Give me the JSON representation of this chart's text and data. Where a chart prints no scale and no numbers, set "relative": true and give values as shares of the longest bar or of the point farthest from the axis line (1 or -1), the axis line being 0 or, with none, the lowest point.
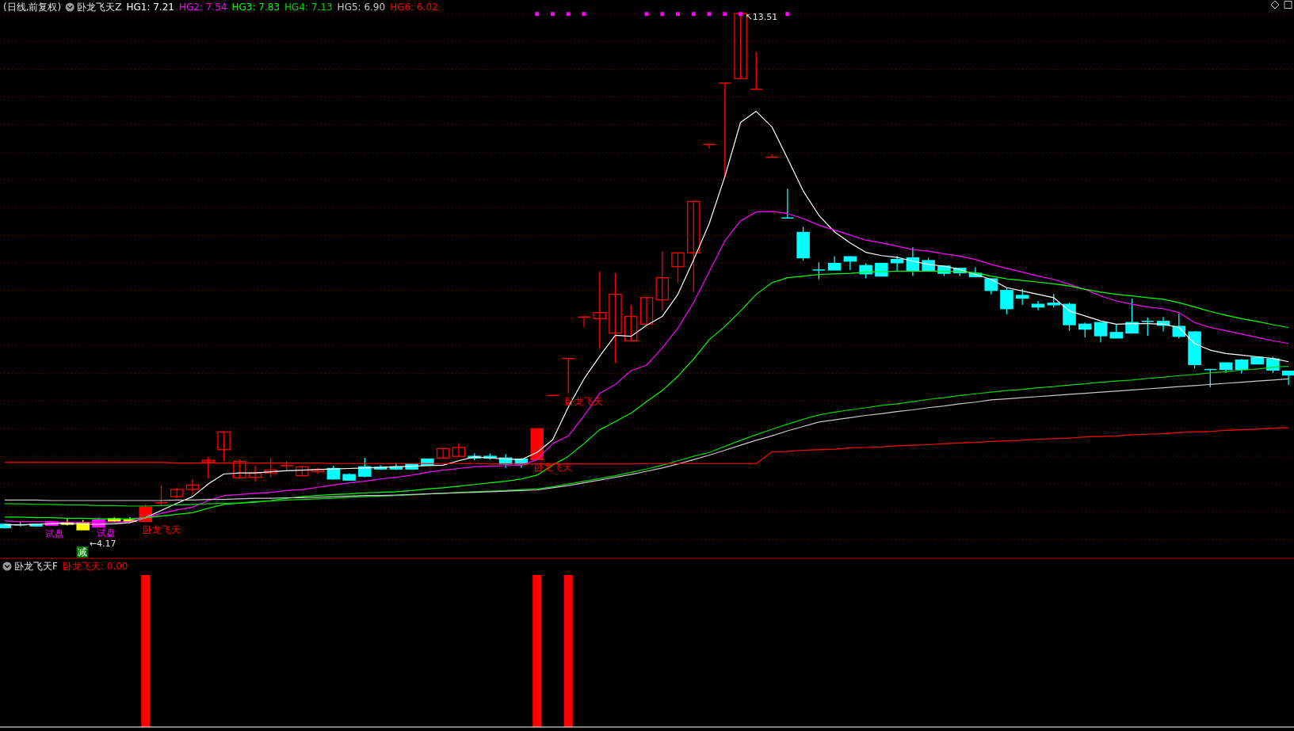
{
  "chart_data": [
    {
      "type": "candlestick",
      "title": "卧龙飞天Z",
      "subtitle": "(日线,前复权)",
      "categories": [
        null,
        null,
        null,
        null,
        null,
        null,
        null,
        null,
        null,
        null,
        null,
        null,
        null,
        null,
        null,
        null,
        null,
        null,
        null,
        null,
        null,
        null,
        null,
        null,
        null,
        null,
        null,
        null,
        null,
        null,
        null,
        null,
        null,
        null,
        null,
        null,
        null,
        null,
        null,
        null,
        null,
        null,
        null,
        null,
        null,
        null,
        null,
        null,
        null,
        null,
        null,
        null,
        null,
        null,
        null,
        null,
        null,
        null,
        null,
        null,
        null,
        null,
        null,
        null,
        null,
        null,
        null,
        null,
        null,
        null,
        null,
        null,
        null,
        null,
        null,
        null,
        null,
        null,
        null,
        null,
        null,
        null,
        null
      ],
      "ohlc": [
        [
          4.27,
          4.28,
          4.19,
          4.21
        ],
        [
          4.27,
          4.32,
          4.23,
          4.25
        ],
        [
          4.27,
          4.28,
          4.23,
          4.24
        ],
        [
          4.32,
          4.33,
          4.24,
          4.25
        ],
        [
          4.3,
          4.39,
          4.25,
          4.27
        ],
        [
          4.3,
          4.35,
          4.17,
          4.17
        ],
        [
          4.35,
          4.39,
          4.21,
          4.22
        ],
        [
          4.33,
          4.4,
          4.31,
          4.37
        ],
        [
          4.32,
          4.4,
          4.29,
          4.35
        ],
        [
          4.32,
          4.63,
          4.32,
          4.58
        ],
        [
          4.66,
          4.97,
          4.61,
          4.66
        ],
        [
          4.77,
          4.93,
          4.74,
          4.9
        ],
        [
          4.9,
          5.08,
          4.81,
          4.98
        ],
        [
          5.4,
          5.49,
          5.1,
          5.43
        ],
        [
          5.62,
          5.95,
          5.41,
          5.94
        ],
        [
          5.11,
          5.45,
          5.11,
          5.41
        ],
        [
          5.12,
          5.33,
          5.04,
          5.2
        ],
        [
          5.2,
          5.47,
          5.12,
          5.25
        ],
        [
          5.33,
          5.41,
          5.25,
          5.33
        ],
        [
          5.15,
          5.33,
          5.14,
          5.31
        ],
        [
          5.22,
          5.29,
          5.18,
          5.26
        ],
        [
          5.28,
          5.33,
          5.08,
          5.09
        ],
        [
          5.17,
          5.19,
          5.06,
          5.07
        ],
        [
          5.31,
          5.47,
          5.12,
          5.14
        ],
        [
          5.3,
          5.34,
          5.25,
          5.27
        ],
        [
          5.31,
          5.38,
          5.25,
          5.27
        ],
        [
          5.36,
          5.37,
          5.26,
          5.27
        ],
        [
          5.45,
          5.46,
          5.33,
          5.34
        ],
        [
          5.47,
          5.65,
          5.46,
          5.64
        ],
        [
          5.5,
          5.74,
          5.48,
          5.66
        ],
        [
          5.5,
          5.55,
          5.43,
          5.47
        ],
        [
          5.5,
          5.55,
          5.44,
          5.47
        ],
        [
          5.47,
          5.54,
          5.29,
          5.36
        ],
        [
          5.45,
          5.47,
          5.29,
          5.36
        ],
        [
          5.44,
          6.0,
          5.44,
          6.0
        ],
        [
          6.6,
          6.6,
          6.6,
          6.6
        ],
        [
          7.27,
          7.27,
          6.64,
          7.27
        ],
        [
          8.02,
          8.02,
          7.84,
          8.02
        ],
        [
          7.99,
          8.84,
          7.45,
          8.1
        ],
        [
          7.73,
          8.81,
          7.19,
          8.43
        ],
        [
          7.59,
          8.24,
          7.59,
          8.03
        ],
        [
          7.89,
          8.37,
          7.89,
          8.37
        ],
        [
          8.33,
          9.21,
          8.14,
          8.73
        ],
        [
          8.93,
          9.18,
          8.64,
          9.18
        ],
        [
          9.18,
          10.11,
          8.47,
          10.11
        ],
        [
          11.14,
          11.14,
          11.07,
          11.14
        ],
        [
          12.25,
          12.25,
          10.55,
          12.25
        ],
        [
          12.33,
          13.51,
          12.33,
          13.51
        ],
        [
          12.14,
          12.81,
          12.14,
          12.14
        ],
        [
          10.91,
          10.96,
          10.91,
          10.91
        ],
        [
          9.81,
          10.34,
          9.81,
          9.81
        ],
        [
          9.55,
          9.65,
          9.04,
          9.09
        ],
        [
          8.87,
          9.01,
          8.7,
          8.87
        ],
        [
          8.99,
          9.12,
          8.87,
          8.87
        ],
        [
          9.11,
          9.12,
          8.87,
          9.03
        ],
        [
          8.95,
          8.99,
          8.72,
          8.8
        ],
        [
          8.99,
          8.99,
          8.76,
          8.76
        ],
        [
          9.06,
          9.12,
          8.85,
          9.0
        ],
        [
          9.09,
          9.28,
          8.76,
          8.86
        ],
        [
          9.04,
          9.09,
          8.85,
          8.85
        ],
        [
          8.94,
          8.94,
          8.76,
          8.81
        ],
        [
          8.9,
          8.9,
          8.76,
          8.82
        ],
        [
          8.81,
          8.92,
          8.75,
          8.75
        ],
        [
          8.71,
          8.71,
          8.43,
          8.5
        ],
        [
          8.5,
          8.54,
          8.07,
          8.17
        ],
        [
          8.41,
          8.53,
          8.24,
          8.36
        ],
        [
          8.25,
          8.31,
          8.14,
          8.2
        ],
        [
          8.27,
          8.44,
          8.19,
          8.24
        ],
        [
          8.25,
          8.28,
          7.77,
          7.88
        ],
        [
          7.89,
          7.92,
          7.65,
          7.8
        ],
        [
          7.92,
          7.92,
          7.56,
          7.68
        ],
        [
          7.74,
          7.89,
          7.64,
          7.64
        ],
        [
          7.92,
          8.35,
          7.73,
          7.73
        ],
        [
          7.95,
          8.01,
          7.68,
          7.93
        ],
        [
          7.94,
          8.02,
          7.76,
          7.87
        ],
        [
          7.85,
          8.08,
          7.63,
          7.67
        ],
        [
          7.75,
          7.76,
          7.09,
          7.16
        ],
        [
          7.08,
          7.08,
          6.75,
          7.06
        ],
        [
          7.19,
          7.19,
          7.01,
          7.07
        ],
        [
          7.24,
          7.26,
          7.0,
          7.07
        ],
        [
          7.29,
          7.29,
          7.17,
          7.17
        ],
        [
          7.26,
          7.3,
          7.01,
          7.06
        ],
        [
          7.04,
          7.04,
          6.79,
          6.97
        ]
      ],
      "colors": [
        "#00ffff",
        "#00ffff",
        "#00ffff",
        "#ff00ff",
        "#ffff00",
        "#ffff00",
        "#ff00ff",
        "#ffff00",
        "#ffff00",
        "#ff0000",
        "#ff0000",
        "#ff0000",
        "#ff0000",
        "#ff0000",
        "#ff0000",
        "#ff0000",
        "#ff0000",
        "#ff0000",
        "#ff0000",
        "#ff0000",
        "#ff0000",
        "#00ffff",
        "#00ffff",
        "#00ffff",
        "#00ffff",
        "#00ffff",
        "#00ffff",
        "#00ffff",
        "#ff0000",
        "#ff0000",
        "#00ffff",
        "#00ffff",
        "#00ffff",
        "#00ffff",
        "#ff0000",
        "#ff0000",
        "#ff0000",
        "#ff0000",
        "#ff0000",
        "#ff0000",
        "#ff0000",
        "#ff0000",
        "#ff0000",
        "#ff0000",
        "#ff0000",
        "#ff0000",
        "#ff0000",
        "#ff0000",
        "#ff0000",
        "#ff0000",
        "#00ffff",
        "#00ffff",
        "#00ffff",
        "#00ffff",
        "#00ffff",
        "#00ffff",
        "#00ffff",
        "#00ffff",
        "#00ffff",
        "#00ffff",
        "#00ffff",
        "#00ffff",
        "#00ffff",
        "#00ffff",
        "#00ffff",
        "#00ffff",
        "#00ffff",
        "#00ffff",
        "#00ffff",
        "#00ffff",
        "#00ffff",
        "#00ffff",
        "#00ffff",
        "#00ffff",
        "#00ffff",
        "#00ffff",
        "#00ffff",
        "#00ffff",
        "#00ffff",
        "#00ffff",
        "#00ffff",
        "#00ffff",
        "#00ffff"
      ],
      "series": [
        {
          "name": "HG1: 7.21",
          "type": "line",
          "color": "#ffffff",
          "values": [
            4.26,
            4.26,
            4.27,
            4.28,
            4.29,
            4.27,
            4.27,
            4.28,
            4.3,
            4.39,
            4.52,
            4.65,
            4.77,
            5.0,
            5.18,
            5.2,
            5.2,
            5.22,
            5.24,
            5.25,
            5.26,
            5.27,
            5.28,
            5.29,
            5.3,
            5.31,
            5.32,
            5.33,
            5.34,
            5.42,
            5.49,
            5.47,
            5.45,
            5.44,
            5.57,
            5.8,
            6.39,
            6.9,
            7.31,
            7.69,
            7.67,
            7.87,
            8.03,
            8.43,
            9.05,
            9.71,
            10.56,
            11.54,
            11.74,
            11.46,
            10.89,
            10.3,
            9.86,
            9.56,
            9.36,
            9.19,
            9.13,
            9.1,
            9.03,
            8.97,
            8.94,
            8.88,
            8.79,
            8.7,
            8.55,
            8.49,
            8.43,
            8.37,
            8.13,
            8.04,
            7.95,
            7.89,
            7.9,
            7.9,
            7.89,
            7.83,
            7.54,
            7.42,
            7.36,
            7.33,
            7.3,
            7.27,
            7.21
          ]
        },
        {
          "name": "HG2: 7.54",
          "type": "line",
          "color": "#ff00ff",
          "values": [
            4.33,
            4.32,
            4.32,
            4.31,
            4.31,
            4.3,
            4.3,
            4.31,
            4.32,
            4.39,
            4.47,
            4.53,
            4.58,
            4.7,
            4.79,
            4.81,
            4.83,
            4.85,
            4.88,
            4.9,
            4.94,
            4.98,
            5.02,
            5.05,
            5.09,
            5.12,
            5.16,
            5.21,
            5.25,
            5.28,
            5.31,
            5.32,
            5.33,
            5.34,
            5.44,
            5.73,
            5.87,
            6.23,
            6.64,
            6.8,
            7.05,
            7.15,
            7.46,
            7.82,
            8.28,
            8.84,
            9.4,
            9.76,
            9.92,
            9.93,
            9.89,
            9.8,
            9.68,
            9.59,
            9.5,
            9.41,
            9.36,
            9.3,
            9.24,
            9.21,
            9.16,
            9.12,
            9.06,
            8.97,
            8.9,
            8.83,
            8.76,
            8.7,
            8.61,
            8.52,
            8.4,
            8.31,
            8.25,
            8.2,
            8.17,
            8.1,
            7.92,
            7.83,
            7.77,
            7.71,
            7.65,
            7.59,
            7.54
          ]
        },
        {
          "name": "HG3: 7.83",
          "type": "line",
          "color": "#00ff00",
          "values": [
            4.4,
            4.4,
            4.39,
            4.39,
            4.38,
            4.38,
            4.37,
            4.37,
            4.37,
            4.39,
            4.42,
            4.45,
            4.48,
            4.56,
            4.63,
            4.65,
            4.67,
            4.7,
            4.74,
            4.77,
            4.79,
            4.81,
            4.82,
            4.84,
            4.85,
            4.86,
            4.88,
            4.91,
            4.93,
            4.96,
            4.99,
            5.02,
            5.05,
            5.09,
            5.16,
            5.34,
            5.5,
            5.73,
            5.98,
            6.13,
            6.28,
            6.49,
            6.69,
            6.95,
            7.26,
            7.61,
            7.85,
            8.13,
            8.43,
            8.64,
            8.73,
            8.76,
            8.79,
            8.8,
            8.81,
            8.83,
            8.84,
            8.85,
            8.85,
            8.85,
            8.85,
            8.84,
            8.82,
            8.76,
            8.71,
            8.68,
            8.65,
            8.62,
            8.58,
            8.52,
            8.47,
            8.43,
            8.4,
            8.37,
            8.34,
            8.28,
            8.2,
            8.12,
            8.05,
            7.99,
            7.94,
            7.88,
            7.83
          ]
        },
        {
          "name": "HG4: 7.13",
          "type": "line",
          "color": "#00d200",
          "values": [
            4.64,
            4.64,
            4.63,
            4.63,
            4.62,
            4.62,
            4.61,
            4.61,
            4.6,
            4.6,
            4.61,
            4.62,
            4.63,
            4.64,
            4.65,
            4.66,
            4.68,
            4.69,
            4.71,
            4.72,
            4.73,
            4.74,
            4.76,
            4.77,
            4.78,
            4.79,
            4.8,
            4.82,
            4.83,
            4.85,
            4.86,
            4.87,
            4.88,
            4.9,
            4.91,
            4.95,
            5.0,
            5.05,
            5.1,
            5.15,
            5.21,
            5.27,
            5.34,
            5.42,
            5.5,
            5.57,
            5.68,
            5.79,
            5.89,
            5.99,
            6.08,
            6.17,
            6.25,
            6.3,
            6.34,
            6.38,
            6.42,
            6.45,
            6.49,
            6.53,
            6.56,
            6.6,
            6.63,
            6.66,
            6.69,
            6.71,
            6.74,
            6.76,
            6.79,
            6.81,
            6.84,
            6.86,
            6.88,
            6.91,
            6.93,
            6.96,
            6.98,
            7.01,
            7.03,
            7.06,
            7.08,
            7.11,
            7.13
          ]
        },
        {
          "name": "HG5: 6.90",
          "type": "line",
          "color": "#c8c8c8",
          "values": [
            4.71,
            4.71,
            4.71,
            4.7,
            4.7,
            4.7,
            4.7,
            4.7,
            4.7,
            4.7,
            4.7,
            4.71,
            4.71,
            4.72,
            4.72,
            4.73,
            4.74,
            4.74,
            4.75,
            4.75,
            4.76,
            4.77,
            4.78,
            4.79,
            4.79,
            4.8,
            4.81,
            4.82,
            4.83,
            4.84,
            4.85,
            4.86,
            4.87,
            4.88,
            4.89,
            4.93,
            4.97,
            5.02,
            5.07,
            5.12,
            5.17,
            5.23,
            5.29,
            5.36,
            5.44,
            5.52,
            5.61,
            5.7,
            5.79,
            5.87,
            5.96,
            6.04,
            6.12,
            6.16,
            6.2,
            6.24,
            6.27,
            6.31,
            6.34,
            6.38,
            6.41,
            6.45,
            6.48,
            6.52,
            6.54,
            6.56,
            6.58,
            6.6,
            6.62,
            6.64,
            6.66,
            6.68,
            6.7,
            6.72,
            6.74,
            6.76,
            6.78,
            6.8,
            6.82,
            6.84,
            6.86,
            6.88,
            6.9
          ]
        },
        {
          "name": "HG6: 6.02",
          "type": "line",
          "color": "#ff0000",
          "values": [
            5.39,
            5.39,
            5.39,
            5.39,
            5.39,
            5.39,
            5.39,
            5.39,
            5.39,
            5.39,
            5.39,
            5.38,
            5.38,
            5.38,
            5.38,
            5.38,
            5.38,
            5.38,
            5.38,
            5.38,
            5.38,
            5.37,
            5.37,
            5.37,
            5.37,
            5.37,
            5.37,
            5.37,
            5.37,
            5.37,
            5.37,
            5.36,
            5.36,
            5.36,
            5.36,
            5.36,
            5.36,
            5.36,
            5.36,
            5.36,
            5.36,
            5.37,
            5.37,
            5.37,
            5.37,
            5.37,
            5.37,
            5.37,
            5.37,
            5.58,
            5.59,
            5.61,
            5.62,
            5.63,
            5.65,
            5.66,
            5.67,
            5.69,
            5.7,
            5.71,
            5.73,
            5.74,
            5.75,
            5.77,
            5.78,
            5.79,
            5.81,
            5.82,
            5.83,
            5.85,
            5.86,
            5.87,
            5.89,
            5.9,
            5.91,
            5.93,
            5.94,
            5.95,
            5.97,
            5.98,
            5.99,
            6.01,
            6.02
          ]
        },
        {
          "type": "scatter",
          "color": "#ff00ff",
          "marker": "square",
          "values": [
            null,
            null,
            null,
            null,
            null,
            null,
            null,
            null,
            null,
            null,
            null,
            null,
            null,
            null,
            null,
            null,
            null,
            null,
            null,
            null,
            null,
            null,
            null,
            null,
            null,
            null,
            null,
            null,
            null,
            null,
            null,
            null,
            null,
            null,
            13.5,
            13.5,
            13.5,
            13.5,
            null,
            null,
            null,
            13.5,
            13.5,
            13.5,
            13.5,
            13.5,
            13.5,
            13.5,
            null,
            null,
            13.5,
            null,
            null,
            null,
            null,
            null,
            null,
            null,
            null,
            null,
            null,
            null,
            null,
            null,
            null,
            null,
            null,
            null,
            null,
            null,
            null,
            null,
            null,
            null,
            null,
            null,
            null,
            null,
            null,
            null,
            null,
            null,
            null
          ]
        }
      ],
      "yticks": [
        {
          "value": 4,
          "label": null
        },
        {
          "value": 4.5,
          "label": null
        },
        {
          "value": 5,
          "label": null
        },
        {
          "value": 5.5,
          "label": null
        },
        {
          "value": 6,
          "label": null
        },
        {
          "value": 6.5,
          "label": null
        },
        {
          "value": 7,
          "label": null
        },
        {
          "value": 7.5,
          "label": null
        },
        {
          "value": 8,
          "label": null
        },
        {
          "value": 8.5,
          "label": null
        },
        {
          "value": 9,
          "label": null
        },
        {
          "value": 9.5,
          "label": null
        },
        {
          "value": 10,
          "label": null
        },
        {
          "value": 10.5,
          "label": null
        },
        {
          "value": 11,
          "label": null
        },
        {
          "value": 11.5,
          "label": null
        },
        {
          "value": 12,
          "label": null
        },
        {
          "value": 12.5,
          "label": null
        },
        {
          "value": 13,
          "label": null
        },
        {
          "value": 13.5,
          "label": null
        }
      ],
      "grid": "y",
      "annotations": [
        "试盘",
        "试盘",
        {
          "text": "←4.17",
          "y": 4.17
        },
        "减",
        "卧龙飞天",
        "卧龙飞天",
        "卧龙飞天",
        "↖13.51"
      ]
    },
    {
      "type": "bar",
      "title": "卧龙飞天F",
      "relative": true,
      "categories": [
        null,
        null,
        null,
        null,
        null,
        null,
        null,
        null,
        null,
        null,
        null,
        null,
        null,
        null,
        null,
        null,
        null,
        null,
        null,
        null,
        null,
        null,
        null,
        null,
        null,
        null,
        null,
        null,
        null,
        null,
        null,
        null,
        null,
        null,
        null,
        null,
        null,
        null,
        null,
        null,
        null,
        null,
        null,
        null,
        null,
        null,
        null,
        null,
        null,
        null,
        null,
        null,
        null,
        null,
        null,
        null,
        null,
        null,
        null,
        null,
        null,
        null,
        null,
        null,
        null,
        null,
        null,
        null,
        null,
        null,
        null,
        null,
        null,
        null,
        null,
        null,
        null,
        null,
        null,
        null,
        null,
        null,
        null
      ],
      "series": [
        {
          "name": "卧龙飞天: 0.00",
          "color": "#ff0000",
          "values": [
            0,
            0,
            0,
            0,
            0,
            0,
            0,
            0,
            0,
            1,
            0,
            0,
            0,
            0,
            0,
            0,
            0,
            0,
            0,
            0,
            0,
            0,
            0,
            0,
            0,
            0,
            0,
            0,
            0,
            0,
            0,
            0,
            0,
            0,
            1,
            0,
            1,
            0,
            0,
            0,
            0,
            0,
            0,
            0,
            0,
            0,
            0,
            0,
            0,
            0,
            0,
            0,
            0,
            0,
            0,
            0,
            0,
            0,
            0,
            0,
            0,
            0,
            0,
            0,
            0,
            0,
            0,
            0,
            0,
            0,
            0,
            0,
            0,
            0,
            0,
            0,
            0,
            0,
            0,
            0,
            0,
            0,
            0
          ]
        }
      ]
    }
  ]
}
